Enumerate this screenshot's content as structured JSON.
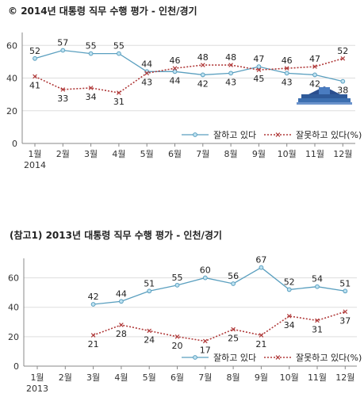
{
  "colors": {
    "approve": "#5a9fbf",
    "disapprove": "#b03a3a",
    "axis": "#888888",
    "grid": "#dddddd"
  },
  "charts": [
    {
      "title_symbol": "©",
      "title": "2014년 대통령 직무 수행 평가 - 인천/경기"
    },
    {
      "title": "(참고1) 2013년 대통령 직무 수행 평가 - 인천/경기"
    }
  ],
  "chart_data": [
    {
      "type": "line",
      "title": "2014년 대통령 직무 수행 평가 - 인천/경기",
      "categories": [
        "1월",
        "2월",
        "3월",
        "4월",
        "5월",
        "6월",
        "7월",
        "8월",
        "9월",
        "10월",
        "11월",
        "12월"
      ],
      "year_label": "2014",
      "yticks": [
        0,
        20,
        40,
        60
      ],
      "ylim": [
        0,
        65
      ],
      "grid": true,
      "legend_position": "bottom-right",
      "series": [
        {
          "name": "잘하고 있다",
          "values": [
            52,
            57,
            55,
            55,
            44,
            44,
            42,
            43,
            47,
            43,
            42,
            38
          ]
        },
        {
          "name": "잘못하고 있다(%)",
          "values": [
            41,
            33,
            34,
            31,
            43,
            46,
            48,
            48,
            45,
            46,
            47,
            52
          ]
        }
      ]
    },
    {
      "type": "line",
      "title": "(참고1) 2013년 대통령 직무 수행 평가 - 인천/경기",
      "categories": [
        "1월",
        "2월",
        "3월",
        "4월",
        "5월",
        "6월",
        "7월",
        "8월",
        "9월",
        "10월",
        "11월",
        "12월"
      ],
      "year_label": "2013",
      "yticks": [
        0,
        20,
        40,
        60
      ],
      "ylim": [
        0,
        70
      ],
      "grid": true,
      "legend_position": "bottom-right",
      "series": [
        {
          "name": "잘하고 있다",
          "values": [
            null,
            null,
            42,
            44,
            51,
            55,
            60,
            56,
            67,
            52,
            54,
            51
          ]
        },
        {
          "name": "잘못하고 있다(%)",
          "values": [
            null,
            null,
            21,
            28,
            24,
            20,
            17,
            25,
            21,
            34,
            31,
            37
          ]
        }
      ]
    }
  ]
}
